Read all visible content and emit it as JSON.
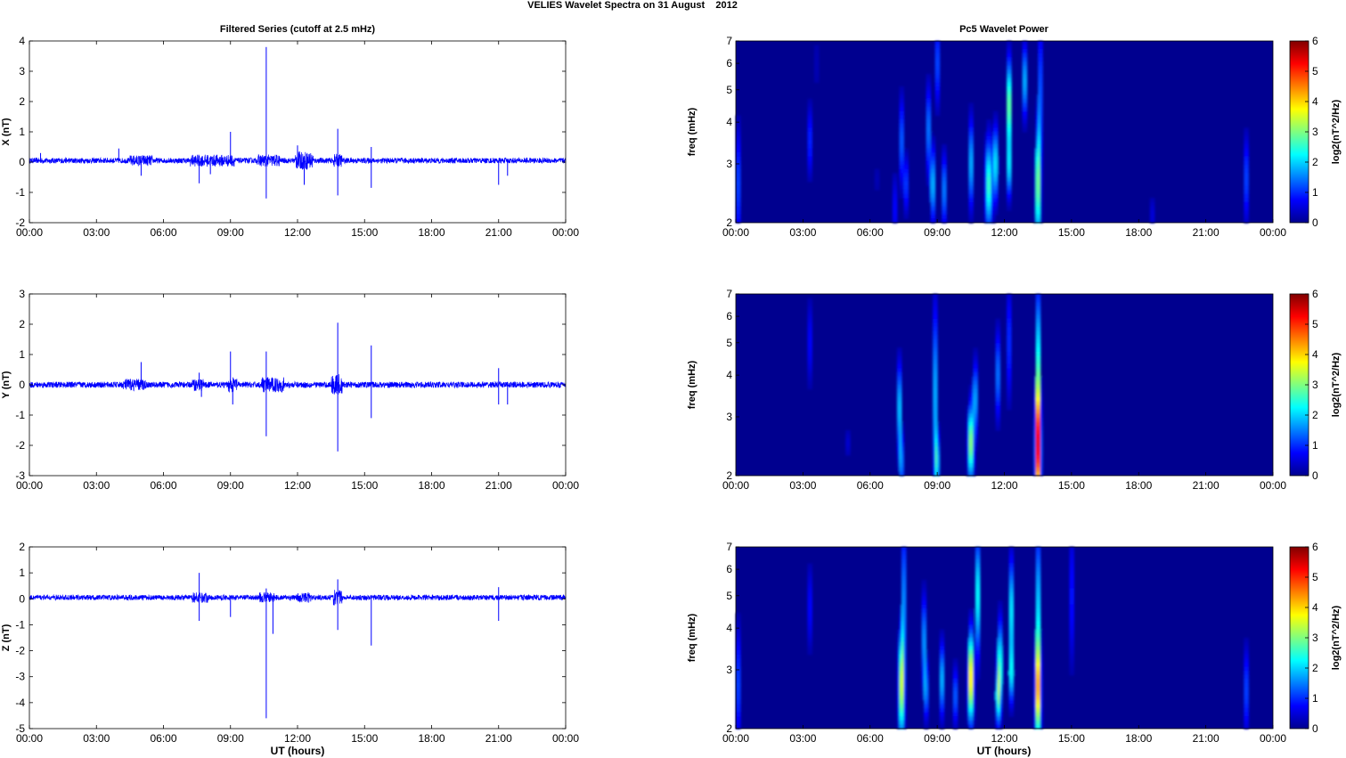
{
  "figure": {
    "title": "VELIES Wavelet Spectra on 31 August    2012",
    "left_title": "Filtered Series (cutoff at 2.5 mHz)",
    "right_title": "Pc5 Wavelet Power",
    "xlabel": "UT (hours)",
    "colors": {
      "trace": "#0000ff",
      "axes": "#000000",
      "background": "#ffffff",
      "spectro_bg": "#00008f"
    }
  },
  "chart_data": [
    {
      "type": "line",
      "panel": "X",
      "ylabel": "X (nT)",
      "xlim": [
        0,
        24
      ],
      "ylim": [
        -2,
        4
      ],
      "yticks": [
        -2,
        -1,
        0,
        1,
        2,
        3,
        4
      ],
      "xticks": [
        "00:00",
        "03:00",
        "06:00",
        "09:00",
        "12:00",
        "15:00",
        "18:00",
        "21:00",
        "00:00"
      ],
      "baseline": 0.05,
      "noise_amplitude": 0.09,
      "active_intervals": [
        [
          4.5,
          5.5,
          0.18
        ],
        [
          7.2,
          9.2,
          0.2
        ],
        [
          10.2,
          11.2,
          0.2
        ],
        [
          11.9,
          12.7,
          0.3
        ],
        [
          13.6,
          14.0,
          0.22
        ]
      ],
      "spikes": [
        [
          0.5,
          0.3
        ],
        [
          4.0,
          0.45
        ],
        [
          5.0,
          -0.45
        ],
        [
          7.6,
          -0.7
        ],
        [
          8.1,
          -0.4
        ],
        [
          9.0,
          1.0
        ],
        [
          10.6,
          3.8
        ],
        [
          10.6,
          -1.2
        ],
        [
          12.0,
          0.55
        ],
        [
          12.3,
          -0.75
        ],
        [
          13.8,
          1.1
        ],
        [
          13.8,
          -1.1
        ],
        [
          15.3,
          0.5
        ],
        [
          15.3,
          -0.85
        ],
        [
          21.0,
          -0.75
        ],
        [
          21.4,
          -0.45
        ]
      ]
    },
    {
      "type": "line",
      "panel": "Y",
      "ylabel": "Y (nT)",
      "xlim": [
        0,
        24
      ],
      "ylim": [
        -3,
        3
      ],
      "yticks": [
        -3,
        -2,
        -1,
        0,
        1,
        2,
        3
      ],
      "xticks": [
        "00:00",
        "03:00",
        "06:00",
        "09:00",
        "12:00",
        "15:00",
        "18:00",
        "21:00",
        "00:00"
      ],
      "baseline": 0.0,
      "noise_amplitude": 0.1,
      "active_intervals": [
        [
          4.2,
          5.2,
          0.2
        ],
        [
          7.3,
          7.8,
          0.2
        ],
        [
          8.9,
          9.3,
          0.25
        ],
        [
          10.4,
          11.4,
          0.25
        ],
        [
          13.5,
          14.0,
          0.35
        ]
      ],
      "spikes": [
        [
          5.0,
          0.75
        ],
        [
          7.6,
          0.4
        ],
        [
          7.7,
          -0.4
        ],
        [
          9.0,
          1.1
        ],
        [
          9.1,
          -0.65
        ],
        [
          10.6,
          1.1
        ],
        [
          10.6,
          -1.7
        ],
        [
          13.8,
          2.05
        ],
        [
          13.8,
          -2.2
        ],
        [
          15.3,
          1.3
        ],
        [
          15.3,
          -1.1
        ],
        [
          21.0,
          0.55
        ],
        [
          21.0,
          -0.65
        ],
        [
          21.4,
          -0.65
        ]
      ]
    },
    {
      "type": "line",
      "panel": "Z",
      "ylabel": "Z (nT)",
      "xlim": [
        0,
        24
      ],
      "ylim": [
        -5,
        2
      ],
      "yticks": [
        -5,
        -4,
        -3,
        -2,
        -1,
        0,
        1,
        2
      ],
      "xticks": [
        "00:00",
        "03:00",
        "06:00",
        "09:00",
        "12:00",
        "15:00",
        "18:00",
        "21:00",
        "00:00"
      ],
      "baseline": 0.05,
      "noise_amplitude": 0.1,
      "active_intervals": [
        [
          7.3,
          8.0,
          0.2
        ],
        [
          10.3,
          11.0,
          0.2
        ],
        [
          12.0,
          12.6,
          0.2
        ],
        [
          13.6,
          14.0,
          0.3
        ]
      ],
      "spikes": [
        [
          7.6,
          1.0
        ],
        [
          7.6,
          -0.85
        ],
        [
          9.0,
          -0.7
        ],
        [
          10.6,
          0.4
        ],
        [
          10.6,
          -4.6
        ],
        [
          10.9,
          -1.35
        ],
        [
          13.8,
          0.75
        ],
        [
          13.8,
          -1.2
        ],
        [
          15.3,
          -1.8
        ],
        [
          21.0,
          -0.85
        ],
        [
          21.0,
          0.45
        ]
      ]
    },
    {
      "type": "heatmap",
      "panel": "X",
      "ylabel": "freq (mHz)",
      "scale": "log",
      "xlim": [
        0,
        24
      ],
      "ylim": [
        2,
        7
      ],
      "yticks": [
        2,
        3,
        4,
        5,
        6,
        7
      ],
      "xticks": [
        "00:00",
        "03:00",
        "06:00",
        "09:00",
        "12:00",
        "15:00",
        "18:00",
        "21:00",
        "00:00"
      ],
      "colorbar": {
        "label": "log2(nT^2/Hz)",
        "range": [
          0,
          6
        ],
        "ticks": [
          0,
          1,
          2,
          3,
          4,
          5,
          6
        ]
      },
      "blobs": [
        [
          0.1,
          2.6,
          0.1,
          0.4,
          1.4
        ],
        [
          3.3,
          3.5,
          0.07,
          0.25,
          1.5
        ],
        [
          3.6,
          6.0,
          0.05,
          0.3,
          0.8
        ],
        [
          6.3,
          2.7,
          0.05,
          0.15,
          0.8
        ],
        [
          7.1,
          2.2,
          0.07,
          0.25,
          1.2
        ],
        [
          7.4,
          3.5,
          0.08,
          0.3,
          1.8
        ],
        [
          7.6,
          2.6,
          0.08,
          0.2,
          1.5
        ],
        [
          8.6,
          3.8,
          0.08,
          0.3,
          2.0
        ],
        [
          8.8,
          2.6,
          0.1,
          0.25,
          2.2
        ],
        [
          9.0,
          6.0,
          0.05,
          0.3,
          3.0
        ],
        [
          9.3,
          2.5,
          0.1,
          0.25,
          1.8
        ],
        [
          10.5,
          3.0,
          0.08,
          0.3,
          2.5
        ],
        [
          11.3,
          2.6,
          0.15,
          0.3,
          2.8
        ],
        [
          11.6,
          3.0,
          0.1,
          0.25,
          2.5
        ],
        [
          12.2,
          4.5,
          0.08,
          0.3,
          4.0
        ],
        [
          12.2,
          2.9,
          0.08,
          0.2,
          2.5
        ],
        [
          12.9,
          5.3,
          0.08,
          0.25,
          2.5
        ],
        [
          13.5,
          2.6,
          0.1,
          0.4,
          3.5
        ],
        [
          13.6,
          5.0,
          0.05,
          0.5,
          3.0
        ],
        [
          18.6,
          2.1,
          0.06,
          0.15,
          1.0
        ],
        [
          22.8,
          2.7,
          0.08,
          0.3,
          1.6
        ]
      ]
    },
    {
      "type": "heatmap",
      "panel": "Y",
      "ylabel": "freq (mHz)",
      "scale": "log",
      "xlim": [
        0,
        24
      ],
      "ylim": [
        2,
        7
      ],
      "yticks": [
        2,
        3,
        4,
        5,
        6,
        7
      ],
      "xticks": [
        "00:00",
        "03:00",
        "06:00",
        "09:00",
        "12:00",
        "15:00",
        "18:00",
        "21:00",
        "00:00"
      ],
      "colorbar": {
        "label": "log2(nT^2/Hz)",
        "range": [
          0,
          6
        ],
        "ticks": [
          0,
          1,
          2,
          3,
          4,
          5,
          6
        ]
      },
      "blobs": [
        [
          3.3,
          5.0,
          0.06,
          0.3,
          1.4
        ],
        [
          5.0,
          2.5,
          0.05,
          0.12,
          1.2
        ],
        [
          7.3,
          3.2,
          0.08,
          0.3,
          2.6
        ],
        [
          7.4,
          2.2,
          0.08,
          0.2,
          2.0
        ],
        [
          8.9,
          3.5,
          0.07,
          0.6,
          2.8
        ],
        [
          9.0,
          2.2,
          0.08,
          0.2,
          2.5
        ],
        [
          10.5,
          2.5,
          0.12,
          0.25,
          3.5
        ],
        [
          10.7,
          3.4,
          0.1,
          0.25,
          2.0
        ],
        [
          11.7,
          4.0,
          0.08,
          0.3,
          2.0
        ],
        [
          12.2,
          5.0,
          0.07,
          0.4,
          1.6
        ],
        [
          13.5,
          2.4,
          0.12,
          0.4,
          5.8
        ],
        [
          13.5,
          4.5,
          0.06,
          0.5,
          4.0
        ]
      ]
    },
    {
      "type": "heatmap",
      "panel": "Z",
      "ylabel": "freq (mHz)",
      "scale": "log",
      "xlim": [
        0,
        24
      ],
      "ylim": [
        2,
        7
      ],
      "yticks": [
        2,
        3,
        4,
        5,
        6,
        7
      ],
      "xticks": [
        "00:00",
        "03:00",
        "06:00",
        "09:00",
        "12:00",
        "15:00",
        "18:00",
        "21:00",
        "00:00"
      ],
      "colorbar": {
        "label": "log2(nT^2/Hz)",
        "range": [
          0,
          6
        ],
        "ticks": [
          0,
          1,
          2,
          3,
          4,
          5,
          6
        ]
      },
      "blobs": [
        [
          0.1,
          2.7,
          0.1,
          0.4,
          1.4
        ],
        [
          3.3,
          4.6,
          0.07,
          0.3,
          1.2
        ],
        [
          7.4,
          2.7,
          0.12,
          0.35,
          3.8
        ],
        [
          7.5,
          5.0,
          0.06,
          0.5,
          2.8
        ],
        [
          8.4,
          3.7,
          0.08,
          0.3,
          2.2
        ],
        [
          8.5,
          2.6,
          0.08,
          0.2,
          2.0
        ],
        [
          9.2,
          2.8,
          0.1,
          0.25,
          2.2
        ],
        [
          9.8,
          2.5,
          0.08,
          0.2,
          1.8
        ],
        [
          10.5,
          2.6,
          0.12,
          0.25,
          3.0
        ],
        [
          10.5,
          3.2,
          0.1,
          0.25,
          2.5
        ],
        [
          10.8,
          5.0,
          0.08,
          0.4,
          3.2
        ],
        [
          11.7,
          2.5,
          0.1,
          0.2,
          2.4
        ],
        [
          11.8,
          3.1,
          0.1,
          0.3,
          2.8
        ],
        [
          12.3,
          4.5,
          0.08,
          0.35,
          3.0
        ],
        [
          12.3,
          2.9,
          0.1,
          0.2,
          2.2
        ],
        [
          13.5,
          2.6,
          0.12,
          0.35,
          4.5
        ],
        [
          13.5,
          4.8,
          0.06,
          0.5,
          3.5
        ],
        [
          15.0,
          5.0,
          0.06,
          0.5,
          1.6
        ],
        [
          22.8,
          2.6,
          0.08,
          0.3,
          1.6
        ]
      ]
    }
  ]
}
